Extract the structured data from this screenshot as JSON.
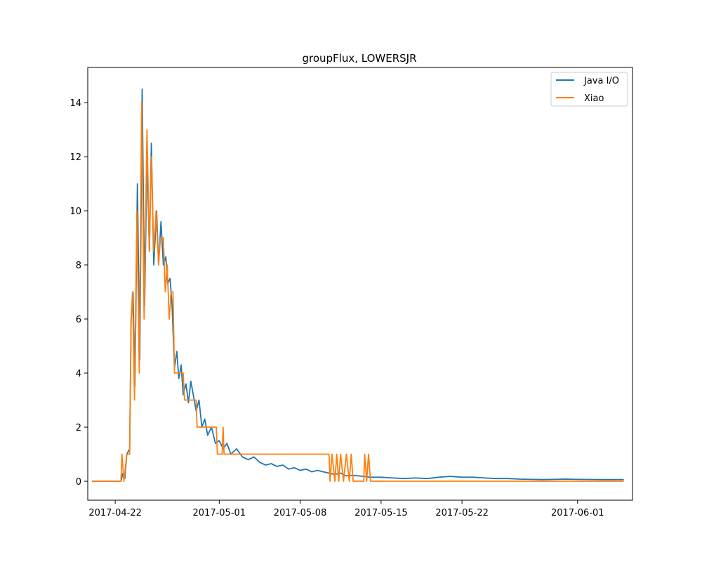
{
  "chart_data": {
    "type": "line",
    "title": "groupFlux, LOWERSJR",
    "xlabel": "",
    "ylabel": "",
    "xlim": [
      "2017-04-19T15:00",
      "2017-06-05T18:00"
    ],
    "ylim": [
      -0.7,
      15.3
    ],
    "x_ticks": [
      {
        "date": "2017-04-22",
        "label": "2017-04-22"
      },
      {
        "date": "2017-05-01",
        "label": "2017-05-01"
      },
      {
        "date": "2017-05-08",
        "label": "2017-05-08"
      },
      {
        "date": "2017-05-15",
        "label": "2017-05-15"
      },
      {
        "date": "2017-05-22",
        "label": "2017-05-22"
      },
      {
        "date": "2017-06-01",
        "label": "2017-06-01"
      }
    ],
    "y_ticks": [
      0,
      2,
      4,
      6,
      8,
      10,
      12,
      14
    ],
    "legend": {
      "position": "top-right"
    },
    "series": [
      {
        "name": "Java I/O",
        "color": "#1f77b4",
        "points": [
          [
            "2017-04-20T00:00",
            0
          ],
          [
            "2017-04-22T12:00",
            0
          ],
          [
            "2017-04-22T16:00",
            0.3
          ],
          [
            "2017-04-22T20:00",
            0.1
          ],
          [
            "2017-04-23T00:00",
            1.0
          ],
          [
            "2017-04-23T06:00",
            1.2
          ],
          [
            "2017-04-23T09:00",
            6.0
          ],
          [
            "2017-04-23T13:00",
            7.0
          ],
          [
            "2017-04-23T17:00",
            3.5
          ],
          [
            "2017-04-23T22:00",
            11.0
          ],
          [
            "2017-04-24T03:00",
            4.5
          ],
          [
            "2017-04-24T08:00",
            14.5
          ],
          [
            "2017-04-24T13:00",
            6.5
          ],
          [
            "2017-04-24T18:00",
            12.0
          ],
          [
            "2017-04-24T23:00",
            8.5
          ],
          [
            "2017-04-25T03:00",
            12.5
          ],
          [
            "2017-04-25T08:00",
            8.0
          ],
          [
            "2017-04-25T14:00",
            10.0
          ],
          [
            "2017-04-25T18:00",
            8.0
          ],
          [
            "2017-04-25T23:00",
            9.6
          ],
          [
            "2017-04-26T04:00",
            8.0
          ],
          [
            "2017-04-26T09:00",
            8.3
          ],
          [
            "2017-04-26T13:00",
            7.3
          ],
          [
            "2017-04-26T18:00",
            7.5
          ],
          [
            "2017-04-26T22:00",
            6.5
          ],
          [
            "2017-04-27T03:00",
            4.2
          ],
          [
            "2017-04-27T08:00",
            4.8
          ],
          [
            "2017-04-27T12:00",
            3.8
          ],
          [
            "2017-04-27T17:00",
            4.3
          ],
          [
            "2017-04-27T21:00",
            3.2
          ],
          [
            "2017-04-28T03:00",
            3.6
          ],
          [
            "2017-04-28T08:00",
            2.9
          ],
          [
            "2017-04-28T13:00",
            3.7
          ],
          [
            "2017-04-28T18:00",
            3.2
          ],
          [
            "2017-04-29T00:00",
            2.6
          ],
          [
            "2017-04-29T06:00",
            3.0
          ],
          [
            "2017-04-29T12:00",
            2.0
          ],
          [
            "2017-04-29T18:00",
            2.3
          ],
          [
            "2017-04-30T00:00",
            1.7
          ],
          [
            "2017-04-30T08:00",
            2.0
          ],
          [
            "2017-04-30T16:00",
            1.4
          ],
          [
            "2017-05-01T00:00",
            1.5
          ],
          [
            "2017-05-01T08:00",
            1.2
          ],
          [
            "2017-05-01T16:00",
            1.4
          ],
          [
            "2017-05-02T00:00",
            1.0
          ],
          [
            "2017-05-02T12:00",
            1.2
          ],
          [
            "2017-05-03T00:00",
            0.9
          ],
          [
            "2017-05-03T12:00",
            0.8
          ],
          [
            "2017-05-04T00:00",
            0.9
          ],
          [
            "2017-05-04T12:00",
            0.7
          ],
          [
            "2017-05-05T00:00",
            0.6
          ],
          [
            "2017-05-05T12:00",
            0.65
          ],
          [
            "2017-05-06T00:00",
            0.55
          ],
          [
            "2017-05-06T12:00",
            0.6
          ],
          [
            "2017-05-07T00:00",
            0.45
          ],
          [
            "2017-05-07T12:00",
            0.5
          ],
          [
            "2017-05-08T00:00",
            0.4
          ],
          [
            "2017-05-08T12:00",
            0.45
          ],
          [
            "2017-05-09T00:00",
            0.35
          ],
          [
            "2017-05-09T12:00",
            0.4
          ],
          [
            "2017-05-10T00:00",
            0.35
          ],
          [
            "2017-05-10T12:00",
            0.3
          ],
          [
            "2017-05-11T00:00",
            0.25
          ],
          [
            "2017-05-11T12:00",
            0.3
          ],
          [
            "2017-05-12T00:00",
            0.2
          ],
          [
            "2017-05-12T12:00",
            0.22
          ],
          [
            "2017-05-13T00:00",
            0.2
          ],
          [
            "2017-05-13T12:00",
            0.18
          ],
          [
            "2017-05-14T00:00",
            0.15
          ],
          [
            "2017-05-15T00:00",
            0.15
          ],
          [
            "2017-05-16T00:00",
            0.12
          ],
          [
            "2017-05-17T00:00",
            0.1
          ],
          [
            "2017-05-18T00:00",
            0.12
          ],
          [
            "2017-05-19T00:00",
            0.1
          ],
          [
            "2017-05-20T00:00",
            0.15
          ],
          [
            "2017-05-21T00:00",
            0.18
          ],
          [
            "2017-05-22T00:00",
            0.15
          ],
          [
            "2017-05-23T00:00",
            0.15
          ],
          [
            "2017-05-24T00:00",
            0.12
          ],
          [
            "2017-05-25T00:00",
            0.1
          ],
          [
            "2017-05-26T00:00",
            0.1
          ],
          [
            "2017-05-27T00:00",
            0.08
          ],
          [
            "2017-05-29T00:00",
            0.06
          ],
          [
            "2017-05-31T00:00",
            0.08
          ],
          [
            "2017-06-01T00:00",
            0.07
          ],
          [
            "2017-06-03T00:00",
            0.06
          ],
          [
            "2017-06-05T00:00",
            0.06
          ]
        ]
      },
      {
        "name": "Xiao",
        "color": "#ff7f0e",
        "points": [
          [
            "2017-04-20T00:00",
            0
          ],
          [
            "2017-04-22T12:00",
            0
          ],
          [
            "2017-04-22T14:00",
            1.0
          ],
          [
            "2017-04-22T18:00",
            0
          ],
          [
            "2017-04-23T00:00",
            1.0
          ],
          [
            "2017-04-23T06:00",
            1.0
          ],
          [
            "2017-04-23T09:00",
            6.0
          ],
          [
            "2017-04-23T12:00",
            7.0
          ],
          [
            "2017-04-23T16:00",
            3.0
          ],
          [
            "2017-04-23T21:00",
            10.0
          ],
          [
            "2017-04-24T02:00",
            4.0
          ],
          [
            "2017-04-24T07:00",
            14.0
          ],
          [
            "2017-04-24T12:00",
            6.0
          ],
          [
            "2017-04-24T18:00",
            13.0
          ],
          [
            "2017-04-24T23:00",
            8.5
          ],
          [
            "2017-04-25T03:00",
            12.0
          ],
          [
            "2017-04-25T08:00",
            8.5
          ],
          [
            "2017-04-25T13:00",
            10.0
          ],
          [
            "2017-04-25T18:00",
            8.0
          ],
          [
            "2017-04-25T22:00",
            9.0
          ],
          [
            "2017-04-26T04:00",
            9.0
          ],
          [
            "2017-04-26T08:00",
            7.0
          ],
          [
            "2017-04-26T12:00",
            8.0
          ],
          [
            "2017-04-26T16:00",
            6.0
          ],
          [
            "2017-04-26T20:00",
            7.0
          ],
          [
            "2017-04-27T00:00",
            7.0
          ],
          [
            "2017-04-27T03:00",
            4.0
          ],
          [
            "2017-04-27T21:00",
            4.0
          ],
          [
            "2017-04-28T00:00",
            3.0
          ],
          [
            "2017-04-29T00:00",
            3.0
          ],
          [
            "2017-04-29T02:00",
            2.0
          ],
          [
            "2017-04-30T18:00",
            2.0
          ],
          [
            "2017-04-30T20:00",
            1.0
          ],
          [
            "2017-05-01T06:00",
            1.0
          ],
          [
            "2017-05-01T08:00",
            2.0
          ],
          [
            "2017-05-01T10:00",
            1.0
          ],
          [
            "2017-05-02T00:00",
            1.0
          ],
          [
            "2017-05-10T12:00",
            1.0
          ],
          [
            "2017-05-10T14:00",
            0
          ],
          [
            "2017-05-10T18:00",
            1.0
          ],
          [
            "2017-05-11T00:00",
            0
          ],
          [
            "2017-05-11T04:00",
            1.0
          ],
          [
            "2017-05-11T08:00",
            0
          ],
          [
            "2017-05-11T12:00",
            1.0
          ],
          [
            "2017-05-11T18:00",
            0
          ],
          [
            "2017-05-12T00:00",
            1.0
          ],
          [
            "2017-05-12T06:00",
            0
          ],
          [
            "2017-05-12T10:00",
            1.0
          ],
          [
            "2017-05-12T14:00",
            0
          ],
          [
            "2017-05-13T12:00",
            0
          ],
          [
            "2017-05-13T14:00",
            1.0
          ],
          [
            "2017-05-13T18:00",
            0
          ],
          [
            "2017-05-13T22:00",
            1.0
          ],
          [
            "2017-05-14T02:00",
            0
          ],
          [
            "2017-06-05T00:00",
            0
          ]
        ]
      }
    ]
  }
}
